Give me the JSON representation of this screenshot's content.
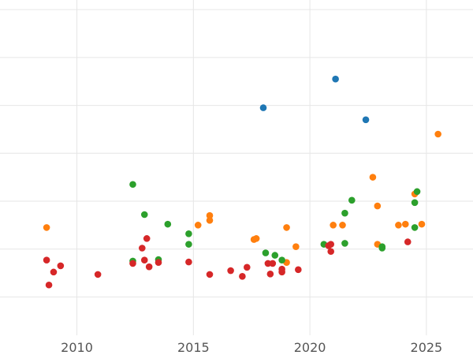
{
  "chart_data": {
    "type": "scatter",
    "title": "",
    "xlabel": "",
    "ylabel": "",
    "xlim": [
      2006.7,
      2027.0
    ],
    "ylim": [
      -0.2,
      6.8
    ],
    "x_ticks": [
      {
        "value": 2010,
        "label": "2010"
      },
      {
        "value": 2015,
        "label": "2015"
      },
      {
        "value": 2020,
        "label": "2020"
      },
      {
        "value": 2025,
        "label": "2025"
      }
    ],
    "y_grid": [
      0.6,
      1.6,
      2.6,
      3.6,
      4.6,
      5.6,
      6.6
    ],
    "grid": true,
    "legend": "none",
    "colors": {
      "blue": "#1f77b4",
      "orange": "#ff7f0e",
      "green": "#2ca02c",
      "red": "#d62728",
      "grid": "#e6e6e6",
      "tick_text": "#555555"
    },
    "series": [
      {
        "color": "#1f77b4",
        "points": [
          {
            "x": 2018.0,
            "y": 4.55
          },
          {
            "x": 2021.1,
            "y": 5.15
          },
          {
            "x": 2022.4,
            "y": 4.3
          }
        ]
      },
      {
        "color": "#ff7f0e",
        "points": [
          {
            "x": 2008.7,
            "y": 2.05
          },
          {
            "x": 2015.2,
            "y": 2.1
          },
          {
            "x": 2015.7,
            "y": 2.2
          },
          {
            "x": 2015.7,
            "y": 2.3
          },
          {
            "x": 2017.6,
            "y": 1.8
          },
          {
            "x": 2017.7,
            "y": 1.82
          },
          {
            "x": 2019.0,
            "y": 1.32
          },
          {
            "x": 2019.0,
            "y": 2.05
          },
          {
            "x": 2019.4,
            "y": 1.65
          },
          {
            "x": 2021.0,
            "y": 2.1
          },
          {
            "x": 2021.4,
            "y": 2.1
          },
          {
            "x": 2022.7,
            "y": 3.1
          },
          {
            "x": 2022.9,
            "y": 1.7
          },
          {
            "x": 2022.9,
            "y": 2.5
          },
          {
            "x": 2023.8,
            "y": 2.1
          },
          {
            "x": 2024.1,
            "y": 2.12
          },
          {
            "x": 2024.5,
            "y": 2.75
          },
          {
            "x": 2024.8,
            "y": 2.12
          },
          {
            "x": 2025.5,
            "y": 4.0
          }
        ]
      },
      {
        "color": "#2ca02c",
        "points": [
          {
            "x": 2012.4,
            "y": 2.95
          },
          {
            "x": 2012.4,
            "y": 1.35
          },
          {
            "x": 2012.9,
            "y": 2.32
          },
          {
            "x": 2013.5,
            "y": 1.38
          },
          {
            "x": 2013.9,
            "y": 2.12
          },
          {
            "x": 2014.8,
            "y": 1.7
          },
          {
            "x": 2014.8,
            "y": 1.92
          },
          {
            "x": 2018.1,
            "y": 1.52
          },
          {
            "x": 2018.5,
            "y": 1.47
          },
          {
            "x": 2018.8,
            "y": 1.37
          },
          {
            "x": 2020.6,
            "y": 1.7
          },
          {
            "x": 2021.5,
            "y": 2.35
          },
          {
            "x": 2021.5,
            "y": 1.72
          },
          {
            "x": 2021.8,
            "y": 2.62
          },
          {
            "x": 2023.1,
            "y": 1.62
          },
          {
            "x": 2023.1,
            "y": 1.65
          },
          {
            "x": 2024.5,
            "y": 2.57
          },
          {
            "x": 2024.5,
            "y": 2.05
          },
          {
            "x": 2024.6,
            "y": 2.8
          }
        ]
      },
      {
        "color": "#d62728",
        "points": [
          {
            "x": 2008.7,
            "y": 1.37
          },
          {
            "x": 2008.8,
            "y": 0.85
          },
          {
            "x": 2009.0,
            "y": 1.12
          },
          {
            "x": 2009.3,
            "y": 1.25
          },
          {
            "x": 2010.9,
            "y": 1.07
          },
          {
            "x": 2012.4,
            "y": 1.3
          },
          {
            "x": 2012.8,
            "y": 1.62
          },
          {
            "x": 2013.0,
            "y": 1.82
          },
          {
            "x": 2012.9,
            "y": 1.37
          },
          {
            "x": 2013.1,
            "y": 1.23
          },
          {
            "x": 2013.5,
            "y": 1.32
          },
          {
            "x": 2014.8,
            "y": 1.33
          },
          {
            "x": 2015.7,
            "y": 1.07
          },
          {
            "x": 2016.6,
            "y": 1.15
          },
          {
            "x": 2017.1,
            "y": 1.03
          },
          {
            "x": 2017.3,
            "y": 1.22
          },
          {
            "x": 2018.2,
            "y": 1.3
          },
          {
            "x": 2018.3,
            "y": 1.08
          },
          {
            "x": 2018.4,
            "y": 1.3
          },
          {
            "x": 2018.8,
            "y": 1.12
          },
          {
            "x": 2018.8,
            "y": 1.18
          },
          {
            "x": 2019.5,
            "y": 1.17
          },
          {
            "x": 2020.8,
            "y": 1.67
          },
          {
            "x": 2020.9,
            "y": 1.55
          },
          {
            "x": 2020.9,
            "y": 1.7
          },
          {
            "x": 2024.2,
            "y": 1.75
          }
        ]
      }
    ]
  }
}
